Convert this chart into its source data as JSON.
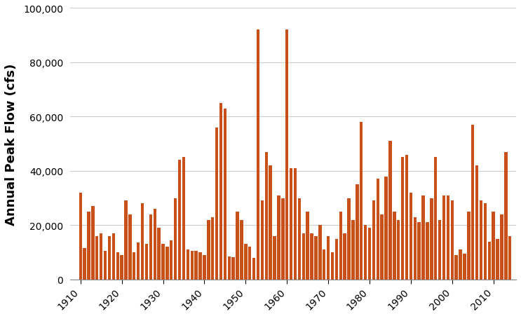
{
  "title": "",
  "ylabel": "Annual Peak Flow (cfs)",
  "bar_color": "#C8511A",
  "background_color": "#FFFFFF",
  "ylim": [
    0,
    100000
  ],
  "yticks": [
    0,
    20000,
    40000,
    60000,
    80000,
    100000
  ],
  "ytick_labels": [
    "0",
    "20,000",
    "40,000",
    "60,000",
    "80,000",
    "100,000"
  ],
  "years": [
    1910,
    1911,
    1912,
    1913,
    1914,
    1915,
    1916,
    1917,
    1918,
    1919,
    1920,
    1921,
    1922,
    1923,
    1924,
    1925,
    1926,
    1927,
    1928,
    1929,
    1930,
    1931,
    1932,
    1933,
    1934,
    1935,
    1936,
    1937,
    1938,
    1939,
    1940,
    1941,
    1942,
    1943,
    1944,
    1945,
    1946,
    1947,
    1948,
    1949,
    1950,
    1951,
    1952,
    1953,
    1954,
    1955,
    1956,
    1957,
    1958,
    1959,
    1960,
    1961,
    1962,
    1963,
    1964,
    1965,
    1966,
    1967,
    1968,
    1969,
    1970,
    1971,
    1972,
    1973,
    1974,
    1975,
    1976,
    1977,
    1978,
    1979,
    1980,
    1981,
    1982,
    1983,
    1984,
    1985,
    1986,
    1987,
    1988,
    1989,
    1990,
    1991,
    1992,
    1993,
    1994,
    1995,
    1996,
    1997,
    1998,
    1999,
    2000,
    2001,
    2002,
    2003,
    2004,
    2005,
    2006,
    2007,
    2008,
    2009,
    2010,
    2011,
    2012,
    2013,
    2014
  ],
  "flows": [
    32000,
    11500,
    25000,
    27000,
    16000,
    17000,
    10500,
    16000,
    17000,
    10000,
    9000,
    29000,
    24000,
    10000,
    13500,
    28000,
    13000,
    24000,
    26000,
    19000,
    13000,
    12000,
    14500,
    30000,
    44000,
    45000,
    11000,
    10500,
    10500,
    10000,
    9000,
    22000,
    23000,
    56000,
    65000,
    63000,
    8500,
    8210,
    25000,
    22000,
    13000,
    12000,
    8000,
    92000,
    29000,
    47000,
    42000,
    16000,
    31000,
    30000,
    92000,
    41000,
    41000,
    30000,
    17000,
    25000,
    17000,
    16000,
    20000,
    11000,
    16000,
    10000,
    15000,
    25000,
    17000,
    30000,
    22000,
    35000,
    58000,
    20000,
    19000,
    29000,
    37000,
    24000,
    38000,
    51000,
    25000,
    22000,
    45000,
    46000,
    32000,
    23000,
    21000,
    31000,
    21000,
    30000,
    45000,
    22000,
    31000,
    31000,
    29000,
    9000,
    11000,
    9500,
    25000,
    57000,
    42000,
    29000,
    28000,
    14000,
    25000,
    15000,
    24000,
    47000,
    16000
  ]
}
